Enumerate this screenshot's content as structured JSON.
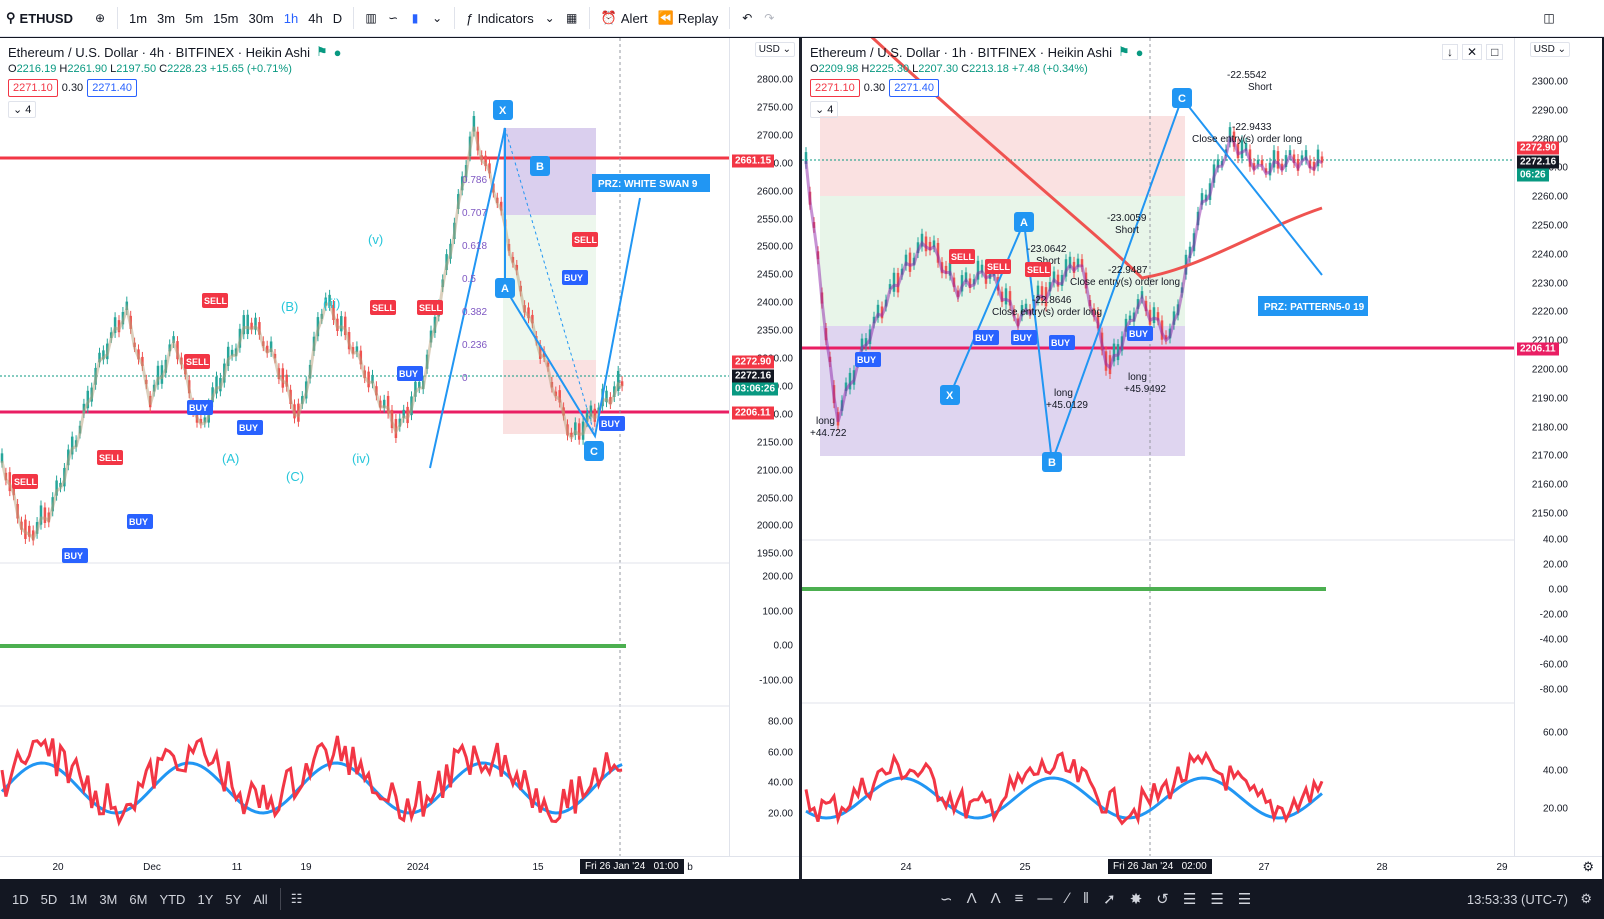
{
  "toolbar": {
    "symbol": "ETHUSD",
    "intervals": [
      "1m",
      "3m",
      "5m",
      "15m",
      "30m",
      "1h",
      "4h",
      "D"
    ],
    "active_interval": "1h",
    "indicators_label": "Indicators",
    "alert_label": "Alert",
    "replay_label": "Replay"
  },
  "left_chart": {
    "title": "Ethereum / U.S. Dollar · 4h · BITFINEX · Heikin Ashi",
    "ohlc": {
      "o": "2216.19",
      "h": "2261.90",
      "l": "2197.50",
      "c": "2228.23",
      "change": "+15.65 (+0.71%)"
    },
    "bid": "2271.10",
    "spread": "0.30",
    "ask": "2271.40",
    "indicator_count": "4",
    "currency": "USD",
    "price_axis": [
      "2800.00",
      "2750.00",
      "2700.00",
      "2650.00",
      "2600.00",
      "2550.00",
      "2500.00",
      "2450.00",
      "2400.00",
      "2350.00",
      "2300.00",
      "2250.00",
      "2200.00",
      "2150.00",
      "2100.00",
      "2050.00",
      "2000.00",
      "1950.00"
    ],
    "osc_axis": [
      "200.00",
      "100.00",
      "0.00",
      "-100.00"
    ],
    "rsi_axis": [
      "80.00",
      "60.00",
      "40.00",
      "20.00"
    ],
    "time_axis": [
      "20",
      "Dec",
      "11",
      "19",
      "2024",
      "15",
      "b"
    ],
    "time_cursor": "Fri 26 Jan '24   01:00",
    "tags": {
      "red_line": "2661.15",
      "cur1": "2272.90",
      "cur2": "2272.16",
      "pink_line": "2206.11",
      "countdown": "03:06:26"
    },
    "prz_label": "PRZ: WHITE SWAN 9",
    "pattern_points": {
      "x": "X",
      "a": "A",
      "b": "B",
      "c": "C"
    },
    "fib_levels": [
      "0.786",
      "0.707",
      "0.618",
      "0.5",
      "0.382",
      "0.236",
      "0"
    ],
    "wave_labels": [
      "(v)",
      "(B)",
      "(iii)",
      "(A)",
      "(C)",
      "(iv)"
    ],
    "signals": {
      "buy": "BUY",
      "sell": "SELL"
    }
  },
  "right_chart": {
    "title": "Ethereum / U.S. Dollar · 1h · BITFINEX · Heikin Ashi",
    "ohlc": {
      "o": "2209.98",
      "h": "2225.30",
      "l": "2207.30",
      "c": "2213.18",
      "change": "+7.48 (+0.34%)"
    },
    "bid": "2271.10",
    "spread": "0.30",
    "ask": "2271.40",
    "indicator_count": "4",
    "currency": "USD",
    "price_axis": [
      "2300.00",
      "2290.00",
      "2280.00",
      "2270.00",
      "2260.00",
      "2250.00",
      "2240.00",
      "2230.00",
      "2220.00",
      "2210.00",
      "2200.00",
      "2190.00",
      "2180.00",
      "2170.00",
      "2160.00",
      "2150.00"
    ],
    "osc_axis": [
      "40.00",
      "20.00",
      "0.00",
      "-20.00",
      "-40.00",
      "-60.00",
      "-80.00"
    ],
    "rsi_axis": [
      "60.00",
      "40.00",
      "20.00"
    ],
    "time_axis": [
      "24",
      "25",
      "27",
      "28",
      "29"
    ],
    "time_cursor": "Fri 26 Jan '24   02:00",
    "tags": {
      "cur1": "2272.90",
      "cur2": "2272.16",
      "countdown": "06:26",
      "pink_line": "2206.11"
    },
    "prz_label": "PRZ: PATTERN5-0 19",
    "pattern_points": {
      "x": "X",
      "a": "A",
      "b": "B",
      "c": "C"
    },
    "annotations": {
      "short1_value": "-22.5542",
      "short1_label": "Short",
      "close1_value": "-22.9433",
      "close1_label": "Close entry(s) order long",
      "short2_value": "-23.0059",
      "short2_label": "Short",
      "short3_value": "-23.0642",
      "short3_label": "Short",
      "close2_value": "-22.9487",
      "close2_label": "Close entry(s) order long",
      "close3_value": "-22.8646",
      "close3_label": "Close entry(s) order long",
      "long1_label": "long",
      "long1_value": "+44.722",
      "long2_label": "long",
      "long2_value": "+45.0129",
      "long3_label": "long",
      "long3_value": "+45.9492"
    },
    "signals": {
      "buy": "BUY",
      "sell": "SELL"
    }
  },
  "bottom": {
    "ranges": [
      "1D",
      "5D",
      "1M",
      "3M",
      "6M",
      "YTD",
      "1Y",
      "5Y",
      "All"
    ],
    "clock": "13:53:33 (UTC-7)"
  },
  "colors": {
    "red_line": "#f23645",
    "pink_line": "#e91e63",
    "blue": "#2196f3",
    "green": "#089981"
  }
}
